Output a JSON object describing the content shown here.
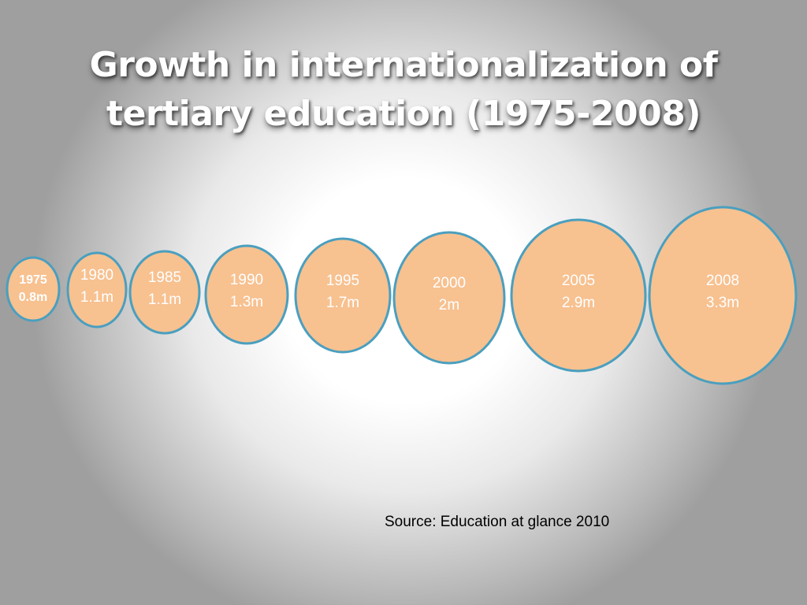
{
  "title": {
    "line1": "Growth in internationalization of",
    "line2": "tertiary education (1975-2008)"
  },
  "source": "Source: Education at glance 2010",
  "colors": {
    "bubble_fill": "#f7c190",
    "bubble_stroke": "#4a9fbf",
    "label_text": "#ffffff"
  },
  "chart_data": {
    "type": "bubble",
    "title": "Growth in internationalization of tertiary education (1975-2008)",
    "x": [
      "1975",
      "1980",
      "1985",
      "1990",
      "1995",
      "2000",
      "2005",
      "2008"
    ],
    "values": [
      0.8,
      1.1,
      1.1,
      1.3,
      1.7,
      2,
      2.9,
      3.3
    ],
    "value_labels": [
      "0.8m",
      "1.1m",
      "1.1m",
      "1.3m",
      "1.7m",
      "2m",
      "2.9m",
      "3.3m"
    ],
    "unit": "m",
    "grid": false,
    "legend": "none"
  }
}
